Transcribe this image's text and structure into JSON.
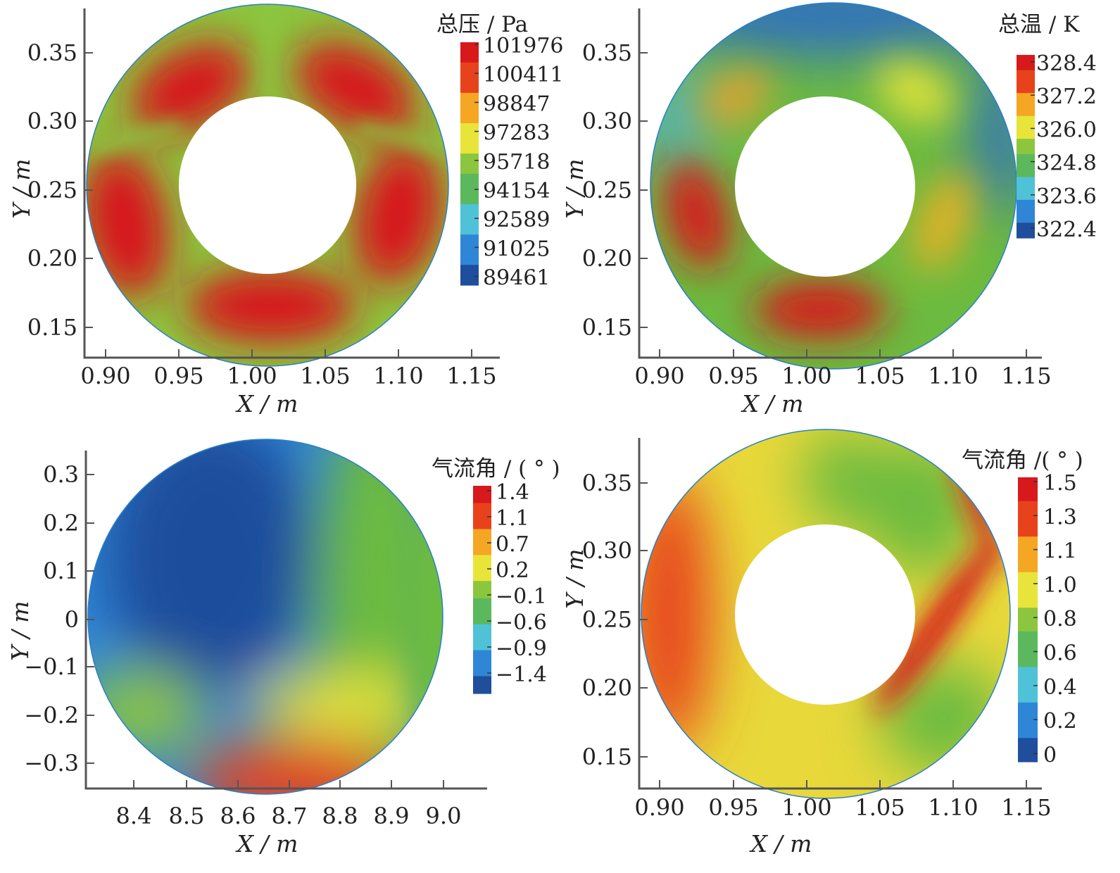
{
  "chart_data": [
    {
      "type": "heatmap",
      "subtype": "annulus-contour",
      "xlabel": "X / m",
      "ylabel": "Y / m",
      "xticks": [
        "0.90",
        "0.95",
        "1.00",
        "1.05",
        "1.10",
        "1.15"
      ],
      "yticks": [
        "0.35",
        "0.30",
        "0.25",
        "0.20",
        "0.15"
      ],
      "xlim": [
        0.885,
        1.16
      ],
      "ylim": [
        0.128,
        0.378
      ],
      "center": [
        1.01,
        0.253
      ],
      "outer_radius": 0.124,
      "inner_radius": 0.0625,
      "colorbar": {
        "title": "总压 / Pa",
        "labels": [
          "101976",
          "100411",
          "98847",
          "97283",
          "95718",
          "94154",
          "92589",
          "91025",
          "89461"
        ],
        "min": 89461,
        "max": 101976
      },
      "colormap": [
        "#1f4e9c",
        "#2f86d6",
        "#4fc2d8",
        "#5cb85c",
        "#8cc63f",
        "#e8e43a",
        "#f5a623",
        "#e8421c",
        "#d7191c"
      ]
    },
    {
      "type": "heatmap",
      "subtype": "annulus-contour",
      "xlabel": "X / m",
      "ylabel": "Y / m",
      "xticks": [
        "0.90",
        "0.95",
        "1.00",
        "1.05",
        "1.10",
        "1.15"
      ],
      "yticks": [
        "0.35",
        "0.30",
        "0.25",
        "0.20",
        "0.15"
      ],
      "xlim": [
        0.885,
        1.16
      ],
      "ylim": [
        0.128,
        0.378
      ],
      "center": [
        1.01,
        0.253
      ],
      "outer_radius": 0.124,
      "inner_radius": 0.0625,
      "colorbar": {
        "title": "总温 / K",
        "labels": [
          "328.4",
          "327.2",
          "326.0",
          "324.8",
          "323.6",
          "322.4"
        ],
        "min": 322.4,
        "max": 328.4
      },
      "colormap": [
        "#1f4e9c",
        "#2f86d6",
        "#4fc2d8",
        "#5cb85c",
        "#8cc63f",
        "#e8e43a",
        "#f5a623",
        "#e8421c",
        "#d7191c"
      ]
    },
    {
      "type": "heatmap",
      "subtype": "disk-contour",
      "xlabel": "X / m",
      "ylabel": "Y / m",
      "xticks": [
        "8.4",
        "8.5",
        "8.6",
        "8.7",
        "8.8",
        "8.9",
        "9.0"
      ],
      "yticks": [
        "0.3",
        "0.2",
        "0.1",
        "0",
        "−0.1",
        "−0.2",
        "−0.3"
      ],
      "xlim": [
        8.3,
        9.09
      ],
      "ylim": [
        -0.35,
        0.35
      ],
      "center": [
        8.67,
        0.0
      ],
      "radius": 0.345,
      "colorbar": {
        "title": "气流角 / ( ° )",
        "labels": [
          "1.4",
          "1.1",
          "0.7",
          "0.2",
          "−0.1",
          "−0.6",
          "−0.9",
          "−1.4"
        ],
        "min": -1.4,
        "max": 1.4
      },
      "colormap": [
        "#1f4e9c",
        "#2f86d6",
        "#4fc2d8",
        "#5cb85c",
        "#8cc63f",
        "#e8e43a",
        "#f5a623",
        "#e8421c",
        "#d7191c"
      ]
    },
    {
      "type": "heatmap",
      "subtype": "annulus-contour",
      "xlabel": "X / m",
      "ylabel": "Y / m",
      "xticks": [
        "0.90",
        "0.95",
        "1.00",
        "1.05",
        "1.10",
        "1.15"
      ],
      "yticks": [
        "0.35",
        "0.30",
        "0.25",
        "0.20",
        "0.15"
      ],
      "xlim": [
        0.885,
        1.16
      ],
      "ylim": [
        0.128,
        0.378
      ],
      "center": [
        1.01,
        0.255
      ],
      "outer_radius": 0.124,
      "inner_radius": 0.0625,
      "colorbar": {
        "title": "气流角 /( ° )",
        "labels": [
          "1.5",
          "1.3",
          "1.1",
          "1.0",
          "0.8",
          "0.6",
          "0.4",
          "0.2",
          "0"
        ],
        "min": 0,
        "max": 1.5
      },
      "colormap": [
        "#1f4e9c",
        "#2f86d6",
        "#4fc2d8",
        "#5cb85c",
        "#8cc63f",
        "#e8e43a",
        "#f5a623",
        "#e8421c",
        "#d7191c"
      ]
    }
  ]
}
